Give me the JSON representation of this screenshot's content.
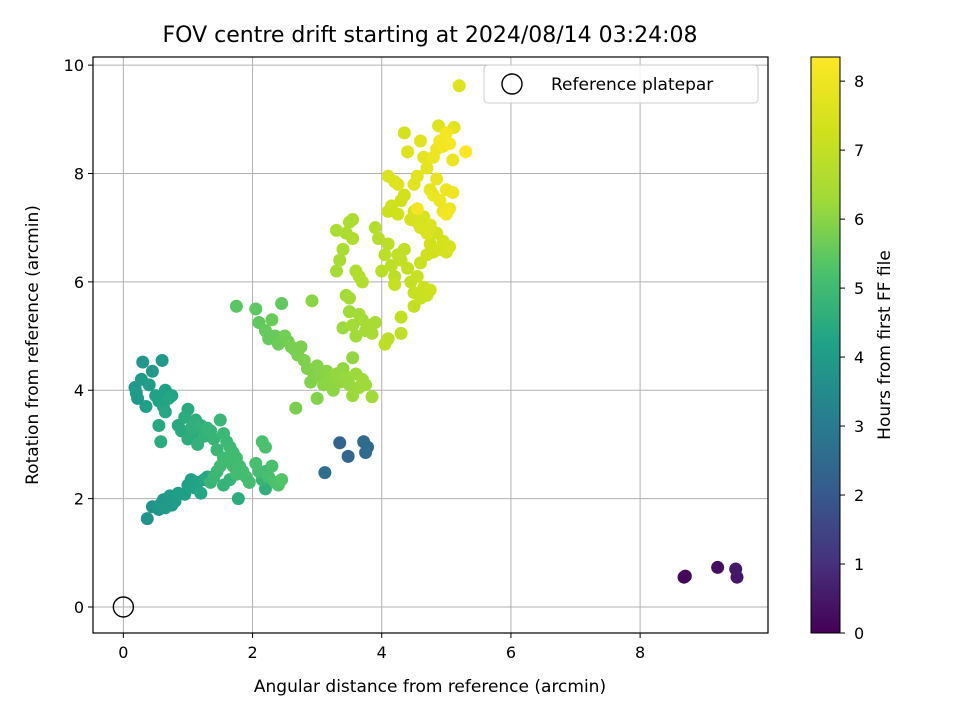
{
  "chart_data": {
    "type": "scatter",
    "title": "FOV centre drift starting at 2024/08/14 03:24:08",
    "xlabel": "Angular distance from reference (arcmin)",
    "ylabel": "Rotation from reference (arcmin)",
    "colorbar_label": "Hours from first FF file",
    "xlim": [
      -0.47,
      9.98
    ],
    "ylim": [
      -0.48,
      10.15
    ],
    "xticks": [
      0,
      2,
      4,
      6,
      8
    ],
    "yticks": [
      0,
      2,
      4,
      6,
      8,
      10
    ],
    "colorbar_range": [
      0,
      8.35
    ],
    "colorbar_ticks": [
      0,
      1,
      2,
      3,
      4,
      5,
      6,
      7,
      8
    ],
    "colormap": "viridis",
    "grid": true,
    "legend": {
      "position": "top-right",
      "entries": [
        "Reference platepar"
      ]
    },
    "reference_point": {
      "label": "Reference platepar",
      "x": 0,
      "y": 0
    },
    "points": [
      [
        8.7,
        0.57,
        0.15
      ],
      [
        8.68,
        0.55,
        0.1
      ],
      [
        9.2,
        0.73,
        0.3
      ],
      [
        9.48,
        0.7,
        0.5
      ],
      [
        9.5,
        0.55,
        0.45
      ],
      [
        3.35,
        3.03,
        2.3
      ],
      [
        3.48,
        2.78,
        2.4
      ],
      [
        3.12,
        2.48,
        2.6
      ],
      [
        3.72,
        3.05,
        2.5
      ],
      [
        3.78,
        2.95,
        2.45
      ],
      [
        3.75,
        2.85,
        2.55
      ],
      [
        0.37,
        1.63,
        3.7
      ],
      [
        0.45,
        1.85,
        3.75
      ],
      [
        0.55,
        1.8,
        3.8
      ],
      [
        0.58,
        1.9,
        3.9
      ],
      [
        0.62,
        1.98,
        3.85
      ],
      [
        0.65,
        1.83,
        3.95
      ],
      [
        0.72,
        2.05,
        4.0
      ],
      [
        0.75,
        1.88,
        3.9
      ],
      [
        0.8,
        1.95,
        4.05
      ],
      [
        0.85,
        2.1,
        4.1
      ],
      [
        0.95,
        2.08,
        4.1
      ],
      [
        1.0,
        2.25,
        4.15
      ],
      [
        1.05,
        2.35,
        4.2
      ],
      [
        1.1,
        2.2,
        4.2
      ],
      [
        1.15,
        2.3,
        4.25
      ],
      [
        1.2,
        2.1,
        4.3
      ],
      [
        1.25,
        2.35,
        4.3
      ],
      [
        1.3,
        2.4,
        4.35
      ],
      [
        0.2,
        3.95,
        4.0
      ],
      [
        0.18,
        4.05,
        3.9
      ],
      [
        0.22,
        3.85,
        3.95
      ],
      [
        0.28,
        4.2,
        4.0
      ],
      [
        0.3,
        4.52,
        3.85
      ],
      [
        0.35,
        3.7,
        4.1
      ],
      [
        0.4,
        4.1,
        4.05
      ],
      [
        0.45,
        4.35,
        3.9
      ],
      [
        0.5,
        3.9,
        4.2
      ],
      [
        0.55,
        3.8,
        4.2
      ],
      [
        0.6,
        4.55,
        3.95
      ],
      [
        0.62,
        3.7,
        4.25
      ],
      [
        0.65,
        4.0,
        4.15
      ],
      [
        0.7,
        3.85,
        4.3
      ],
      [
        0.75,
        3.9,
        4.25
      ],
      [
        0.55,
        3.35,
        4.4
      ],
      [
        0.58,
        3.05,
        4.5
      ],
      [
        0.65,
        3.6,
        4.35
      ],
      [
        0.85,
        3.35,
        4.4
      ],
      [
        0.9,
        3.25,
        4.45
      ],
      [
        0.95,
        3.5,
        4.5
      ],
      [
        1.0,
        3.65,
        4.45
      ],
      [
        1.0,
        3.1,
        4.55
      ],
      [
        1.05,
        3.3,
        4.6
      ],
      [
        1.1,
        3.2,
        4.55
      ],
      [
        1.12,
        3.45,
        4.6
      ],
      [
        1.15,
        3.0,
        4.65
      ],
      [
        1.2,
        3.35,
        4.65
      ],
      [
        1.25,
        3.15,
        4.7
      ],
      [
        1.3,
        3.3,
        4.75
      ],
      [
        1.35,
        3.25,
        4.8
      ],
      [
        1.4,
        3.1,
        4.8
      ],
      [
        1.45,
        2.9,
        4.85
      ],
      [
        1.5,
        3.45,
        4.85
      ],
      [
        1.55,
        3.2,
        4.9
      ],
      [
        1.6,
        3.05,
        4.9
      ],
      [
        1.65,
        2.95,
        4.95
      ],
      [
        1.7,
        2.85,
        5.0
      ],
      [
        1.75,
        2.75,
        5.0
      ],
      [
        1.8,
        2.6,
        5.05
      ],
      [
        1.85,
        2.5,
        5.05
      ],
      [
        1.9,
        2.4,
        5.1
      ],
      [
        1.95,
        2.3,
        5.1
      ],
      [
        1.55,
        2.75,
        4.95
      ],
      [
        1.5,
        2.6,
        4.95
      ],
      [
        1.45,
        2.5,
        4.9
      ],
      [
        1.4,
        2.4,
        4.85
      ],
      [
        1.35,
        2.3,
        4.8
      ],
      [
        1.55,
        2.25,
        4.75
      ],
      [
        1.78,
        2.0,
        4.5
      ],
      [
        1.65,
        2.35,
        4.7
      ],
      [
        1.7,
        2.6,
        5.0
      ],
      [
        1.6,
        2.7,
        5.0
      ],
      [
        1.75,
        2.45,
        5.05
      ],
      [
        2.05,
        2.65,
        5.15
      ],
      [
        2.1,
        2.5,
        5.1
      ],
      [
        2.15,
        3.05,
        5.2
      ],
      [
        2.2,
        2.95,
        5.2
      ],
      [
        2.25,
        2.4,
        5.15
      ],
      [
        2.3,
        2.6,
        5.2
      ],
      [
        2.35,
        2.3,
        5.25
      ],
      [
        2.4,
        2.25,
        5.25
      ],
      [
        2.45,
        2.35,
        5.3
      ],
      [
        2.2,
        2.18,
        4.6
      ],
      [
        2.15,
        2.35,
        4.8
      ],
      [
        2.2,
        2.5,
        4.9
      ],
      [
        1.75,
        5.55,
        5.4
      ],
      [
        2.05,
        5.5,
        5.45
      ],
      [
        2.1,
        5.25,
        5.5
      ],
      [
        2.2,
        5.1,
        5.55
      ],
      [
        2.25,
        4.95,
        5.55
      ],
      [
        2.3,
        5.3,
        5.6
      ],
      [
        2.35,
        5.0,
        5.6
      ],
      [
        2.4,
        4.85,
        5.65
      ],
      [
        2.45,
        5.6,
        5.5
      ],
      [
        2.5,
        5.0,
        5.7
      ],
      [
        2.55,
        4.9,
        5.7
      ],
      [
        2.6,
        4.8,
        5.75
      ],
      [
        2.65,
        4.75,
        5.75
      ],
      [
        2.7,
        4.65,
        5.8
      ],
      [
        2.75,
        4.8,
        5.8
      ],
      [
        2.8,
        4.55,
        5.85
      ],
      [
        2.85,
        4.4,
        5.85
      ],
      [
        2.9,
        4.15,
        5.9
      ],
      [
        2.95,
        4.3,
        5.9
      ],
      [
        3.0,
        4.45,
        5.95
      ],
      [
        3.05,
        4.25,
        5.95
      ],
      [
        3.1,
        4.1,
        6.0
      ],
      [
        3.15,
        4.35,
        6.0
      ],
      [
        3.2,
        4.2,
        6.05
      ],
      [
        3.25,
        4.0,
        6.05
      ],
      [
        3.3,
        4.3,
        6.1
      ],
      [
        3.35,
        4.15,
        6.1
      ],
      [
        3.4,
        4.4,
        6.1
      ],
      [
        3.45,
        4.25,
        6.15
      ],
      [
        3.5,
        4.1,
        6.15
      ],
      [
        3.55,
        3.9,
        6.2
      ],
      [
        3.6,
        4.3,
        6.2
      ],
      [
        3.65,
        4.05,
        6.2
      ],
      [
        3.7,
        4.2,
        6.25
      ],
      [
        3.75,
        4.1,
        6.25
      ],
      [
        3.85,
        3.88,
        6.3
      ],
      [
        2.67,
        3.67,
        5.8
      ],
      [
        2.92,
        5.65,
        6.0
      ],
      [
        3.0,
        3.85,
        5.9
      ],
      [
        3.55,
        4.6,
        6.1
      ],
      [
        3.4,
        5.15,
        6.2
      ],
      [
        3.5,
        5.45,
        6.25
      ],
      [
        3.55,
        5.2,
        6.3
      ],
      [
        3.6,
        5.0,
        6.3
      ],
      [
        3.65,
        5.4,
        6.35
      ],
      [
        3.7,
        5.3,
        6.35
      ],
      [
        3.75,
        5.1,
        6.4
      ],
      [
        3.8,
        5.2,
        6.4
      ],
      [
        3.85,
        5.05,
        6.45
      ],
      [
        3.9,
        5.25,
        6.45
      ],
      [
        3.45,
        5.75,
        6.3
      ],
      [
        3.5,
        5.7,
        6.35
      ],
      [
        3.3,
        6.2,
        6.4
      ],
      [
        3.35,
        6.4,
        6.45
      ],
      [
        3.4,
        6.6,
        6.5
      ],
      [
        3.45,
        6.9,
        6.5
      ],
      [
        3.5,
        7.1,
        6.55
      ],
      [
        3.55,
        7.15,
        6.55
      ],
      [
        3.3,
        6.95,
        6.5
      ],
      [
        3.55,
        6.8,
        6.6
      ],
      [
        3.6,
        6.2,
        6.6
      ],
      [
        3.65,
        6.1,
        6.65
      ],
      [
        3.7,
        6.0,
        6.65
      ],
      [
        3.9,
        7.0,
        6.7
      ],
      [
        3.95,
        6.8,
        6.75
      ],
      [
        4.0,
        6.2,
        6.8
      ],
      [
        4.05,
        6.5,
        6.85
      ],
      [
        4.1,
        6.7,
        6.85
      ],
      [
        4.15,
        6.3,
        6.9
      ],
      [
        4.2,
        6.1,
        6.9
      ],
      [
        4.25,
        6.5,
        6.95
      ],
      [
        4.3,
        6.4,
        7.0
      ],
      [
        4.35,
        6.6,
        7.0
      ],
      [
        4.4,
        6.25,
        7.05
      ],
      [
        4.45,
        6.0,
        7.05
      ],
      [
        4.5,
        5.8,
        7.1
      ],
      [
        4.55,
        6.1,
        7.1
      ],
      [
        4.6,
        6.35,
        7.15
      ],
      [
        4.05,
        4.85,
        6.9
      ],
      [
        4.1,
        4.95,
        6.9
      ],
      [
        4.3,
        5.05,
        6.95
      ],
      [
        4.3,
        5.35,
        7.0
      ],
      [
        4.5,
        5.55,
        7.05
      ],
      [
        4.2,
        5.95,
        7.1
      ],
      [
        4.6,
        5.7,
        7.15
      ],
      [
        4.65,
        5.9,
        7.2
      ],
      [
        4.7,
        5.75,
        7.2
      ],
      [
        4.75,
        5.85,
        7.25
      ],
      [
        4.7,
        6.5,
        7.25
      ],
      [
        4.75,
        6.7,
        7.3
      ],
      [
        4.8,
        6.55,
        7.3
      ],
      [
        4.85,
        6.9,
        7.35
      ],
      [
        4.9,
        6.6,
        7.35
      ],
      [
        4.95,
        6.75,
        7.4
      ],
      [
        5.0,
        6.55,
        7.4
      ],
      [
        5.05,
        6.65,
        7.45
      ],
      [
        4.1,
        7.3,
        7.2
      ],
      [
        4.15,
        7.4,
        7.25
      ],
      [
        4.25,
        7.25,
        7.3
      ],
      [
        4.3,
        7.5,
        7.3
      ],
      [
        4.35,
        7.6,
        7.35
      ],
      [
        4.45,
        7.15,
        7.4
      ],
      [
        4.5,
        7.3,
        7.45
      ],
      [
        4.55,
        7.1,
        7.45
      ],
      [
        4.6,
        7.0,
        7.5
      ],
      [
        4.65,
        7.2,
        7.5
      ],
      [
        4.7,
        6.9,
        7.55
      ],
      [
        4.75,
        7.05,
        7.55
      ],
      [
        4.1,
        7.95,
        7.5
      ],
      [
        4.2,
        7.85,
        7.6
      ],
      [
        4.25,
        7.8,
        7.65
      ],
      [
        4.4,
        8.4,
        7.6
      ],
      [
        4.35,
        8.75,
        7.4
      ],
      [
        4.5,
        7.8,
        7.7
      ],
      [
        4.55,
        7.95,
        7.75
      ],
      [
        4.6,
        8.6,
        7.7
      ],
      [
        4.65,
        8.3,
        7.8
      ],
      [
        4.7,
        8.1,
        7.8
      ],
      [
        4.75,
        7.7,
        7.85
      ],
      [
        4.8,
        7.6,
        7.9
      ],
      [
        4.85,
        7.9,
        7.9
      ],
      [
        4.9,
        7.5,
        7.95
      ],
      [
        4.95,
        7.3,
        8.0
      ],
      [
        5.0,
        7.7,
        8.0
      ],
      [
        5.05,
        7.35,
        8.05
      ],
      [
        5.1,
        7.65,
        8.05
      ],
      [
        4.8,
        8.3,
        7.95
      ],
      [
        4.85,
        8.45,
        8.0
      ],
      [
        4.9,
        8.6,
        8.05
      ],
      [
        4.95,
        8.5,
        8.1
      ],
      [
        5.0,
        8.75,
        8.15
      ],
      [
        5.05,
        8.55,
        8.2
      ],
      [
        5.1,
        8.25,
        7.9
      ],
      [
        5.12,
        8.85,
        7.75
      ],
      [
        4.88,
        8.88,
        7.6
      ],
      [
        5.3,
        8.4,
        8.3
      ],
      [
        5.0,
        7.25,
        8.1
      ],
      [
        4.55,
        7.35,
        8.1
      ],
      [
        5.2,
        9.62,
        7.6
      ]
    ]
  }
}
